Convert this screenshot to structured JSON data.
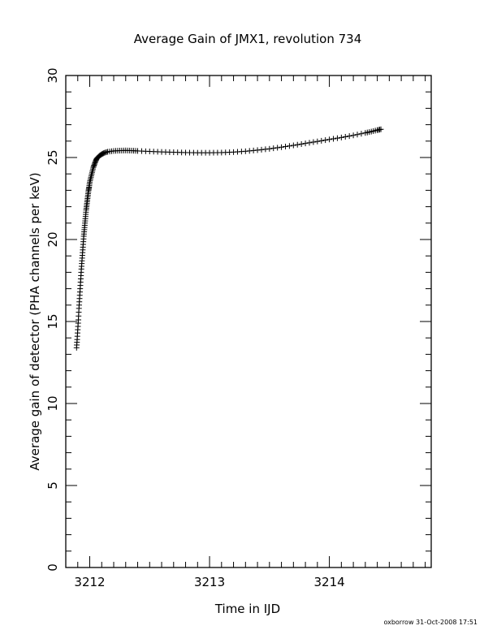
{
  "chart_data": {
    "type": "scatter",
    "title": "Average Gain of JMX1, revolution 734",
    "xlabel": "Time in IJD",
    "ylabel": "Average gain of detector (PHA channels per keV)",
    "xlim": [
      3211.8,
      3214.85
    ],
    "ylim": [
      0,
      30
    ],
    "xticks": [
      3212,
      3213,
      3214
    ],
    "yticks": [
      0,
      5,
      10,
      15,
      20,
      25,
      30
    ],
    "marker": "plus",
    "grid": false,
    "points": [
      [
        3211.89,
        13.4
      ],
      [
        3211.895,
        13.9
      ],
      [
        3211.9,
        14.5
      ],
      [
        3211.905,
        15.1
      ],
      [
        3211.91,
        15.8
      ],
      [
        3211.915,
        16.4
      ],
      [
        3211.92,
        17.0
      ],
      [
        3211.925,
        17.6
      ],
      [
        3211.93,
        18.2
      ],
      [
        3211.935,
        18.7
      ],
      [
        3211.94,
        19.2
      ],
      [
        3211.945,
        19.7
      ],
      [
        3211.95,
        20.2
      ],
      [
        3211.955,
        20.6
      ],
      [
        3211.96,
        21.0
      ],
      [
        3211.965,
        21.4
      ],
      [
        3211.97,
        21.8
      ],
      [
        3211.975,
        22.1
      ],
      [
        3211.98,
        22.4
      ],
      [
        3211.985,
        22.7
      ],
      [
        3211.99,
        23.0
      ],
      [
        3211.995,
        23.2
      ],
      [
        3212.0,
        23.5
      ],
      [
        3212.01,
        23.8
      ],
      [
        3212.02,
        24.1
      ],
      [
        3212.03,
        24.4
      ],
      [
        3212.04,
        24.6
      ],
      [
        3212.05,
        24.8
      ],
      [
        3212.06,
        24.95
      ],
      [
        3212.08,
        25.1
      ],
      [
        3212.1,
        25.2
      ],
      [
        3212.12,
        25.28
      ],
      [
        3212.15,
        25.35
      ],
      [
        3212.2,
        25.4
      ],
      [
        3212.25,
        25.42
      ],
      [
        3212.3,
        25.43
      ],
      [
        3212.35,
        25.42
      ],
      [
        3212.4,
        25.4
      ],
      [
        3212.5,
        25.37
      ],
      [
        3212.6,
        25.34
      ],
      [
        3212.7,
        25.32
      ],
      [
        3212.8,
        25.3
      ],
      [
        3212.9,
        25.29
      ],
      [
        3213.0,
        25.29
      ],
      [
        3213.1,
        25.3
      ],
      [
        3213.2,
        25.33
      ],
      [
        3213.3,
        25.38
      ],
      [
        3213.4,
        25.45
      ],
      [
        3213.5,
        25.53
      ],
      [
        3213.6,
        25.63
      ],
      [
        3213.7,
        25.74
      ],
      [
        3213.8,
        25.86
      ],
      [
        3213.9,
        25.98
      ],
      [
        3214.0,
        26.1
      ],
      [
        3214.1,
        26.22
      ],
      [
        3214.2,
        26.35
      ],
      [
        3214.3,
        26.5
      ],
      [
        3214.35,
        26.58
      ],
      [
        3214.4,
        26.67
      ],
      [
        3214.43,
        26.72
      ]
    ]
  },
  "footer": {
    "stamp": "oxborrow 31-Oct-2008 17:51"
  }
}
